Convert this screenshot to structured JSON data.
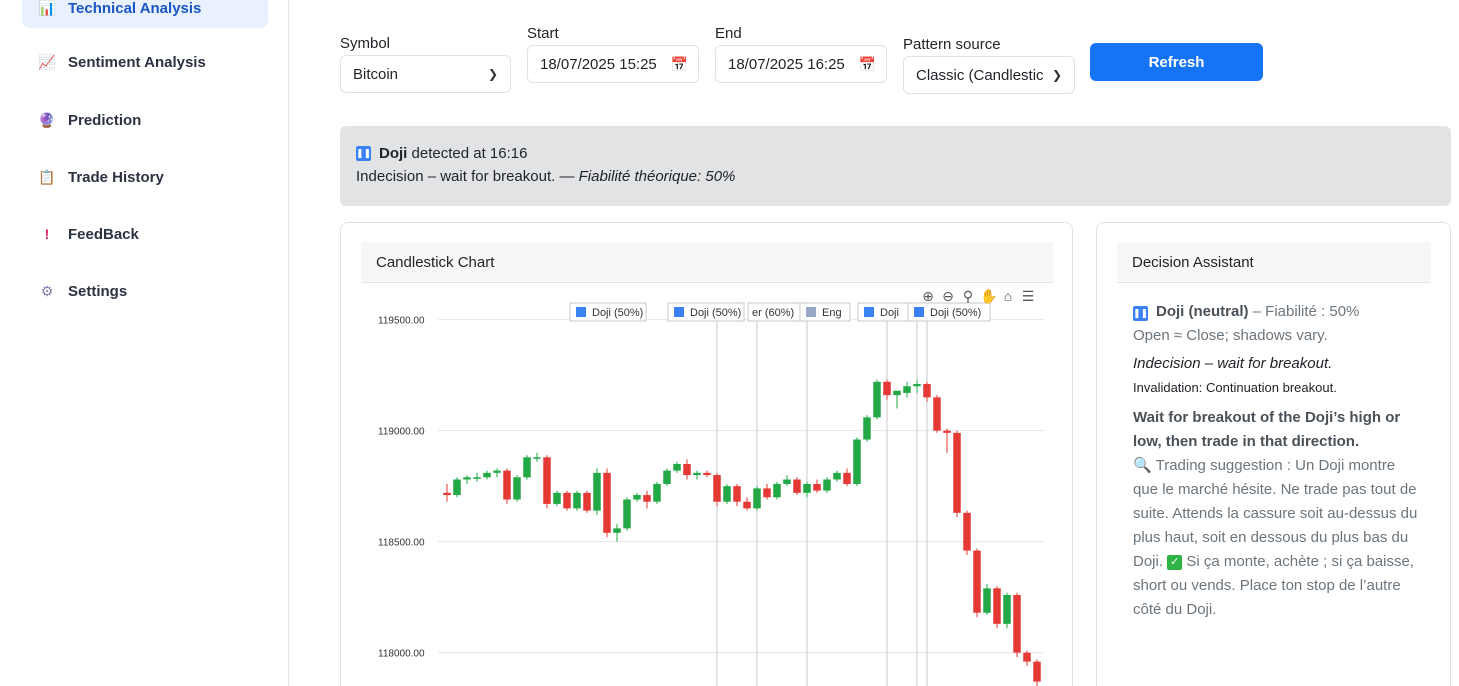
{
  "sidebar": {
    "items": [
      {
        "label": "Technical Analysis",
        "icon": "bar-chart-icon",
        "glyph": "📊",
        "active": true
      },
      {
        "label": "Sentiment Analysis",
        "icon": "line-chart-icon",
        "glyph": "📈"
      },
      {
        "label": "Prediction",
        "icon": "crystal-ball-icon",
        "glyph": "🔮"
      },
      {
        "label": "Trade History",
        "icon": "clipboard-icon",
        "glyph": "📋"
      },
      {
        "label": "FeedBack",
        "icon": "exclamation-icon",
        "glyph": "!"
      },
      {
        "label": "Settings",
        "icon": "gear-icon",
        "glyph": "⚙"
      }
    ]
  },
  "form": {
    "symbol_label": "Symbol",
    "symbol_value": "Bitcoin",
    "start_label": "Start",
    "start_value": "18/07/2025 15:25",
    "end_label": "End",
    "end_value": "18/07/2025 16:25",
    "pattern_label": "Pattern source",
    "pattern_value": "Classic (Candlestic",
    "refresh_label": "Refresh"
  },
  "alert": {
    "pattern": "Doji",
    "detected_text": "detected at 16:16",
    "description": "Indecision – wait for breakout. —",
    "reliability": "Fiabilité théorique: 50%"
  },
  "chart_card": {
    "title": "Candlestick Chart"
  },
  "chart_data": {
    "type": "candlestick",
    "ylim": [
      117850,
      119620
    ],
    "yticks": [
      "119500.00",
      "119000.00",
      "118500.00",
      "118000.00"
    ],
    "ytick_values": [
      119500,
      119000,
      118500,
      118000
    ],
    "annotations": [
      "Doji (50%)",
      "Doji (50%)",
      "er (60%)",
      "Eng",
      "Doji",
      "Doji (50%)"
    ],
    "up_color": "#22a845",
    "down_color": "#e53935",
    "candles": [
      [
        118720,
        118760,
        118680,
        118710
      ],
      [
        118710,
        118790,
        118700,
        118780
      ],
      [
        118780,
        118800,
        118760,
        118790
      ],
      [
        118790,
        118810,
        118770,
        118790
      ],
      [
        118790,
        118820,
        118780,
        118810
      ],
      [
        118810,
        118830,
        118790,
        118820
      ],
      [
        118820,
        118830,
        118670,
        118690
      ],
      [
        118690,
        118800,
        118680,
        118790
      ],
      [
        118790,
        118890,
        118780,
        118880
      ],
      [
        118880,
        118900,
        118860,
        118880
      ],
      [
        118880,
        118890,
        118650,
        118670
      ],
      [
        118670,
        118730,
        118660,
        118720
      ],
      [
        118720,
        118730,
        118640,
        118650
      ],
      [
        118650,
        118730,
        118640,
        118720
      ],
      [
        118720,
        118730,
        118630,
        118640
      ],
      [
        118640,
        118830,
        118620,
        118810
      ],
      [
        118810,
        118830,
        118520,
        118540
      ],
      [
        118540,
        118580,
        118500,
        118560
      ],
      [
        118560,
        118700,
        118550,
        118690
      ],
      [
        118690,
        118720,
        118680,
        118710
      ],
      [
        118710,
        118730,
        118650,
        118680
      ],
      [
        118680,
        118770,
        118670,
        118760
      ],
      [
        118760,
        118830,
        118750,
        118820
      ],
      [
        118820,
        118860,
        118810,
        118850
      ],
      [
        118850,
        118870,
        118780,
        118800
      ],
      [
        118800,
        118820,
        118780,
        118810
      ],
      [
        118810,
        118820,
        118790,
        118800
      ],
      [
        118800,
        118810,
        118660,
        118680
      ],
      [
        118680,
        118760,
        118670,
        118750
      ],
      [
        118750,
        118760,
        118660,
        118680
      ],
      [
        118680,
        118700,
        118640,
        118650
      ],
      [
        118650,
        118750,
        118640,
        118740
      ],
      [
        118740,
        118760,
        118690,
        118700
      ],
      [
        118700,
        118770,
        118690,
        118760
      ],
      [
        118760,
        118800,
        118750,
        118780
      ],
      [
        118780,
        118790,
        118710,
        118720
      ],
      [
        118720,
        118770,
        118700,
        118760
      ],
      [
        118760,
        118780,
        118720,
        118730
      ],
      [
        118730,
        118790,
        118720,
        118780
      ],
      [
        118780,
        118820,
        118770,
        118810
      ],
      [
        118810,
        118830,
        118750,
        118760
      ],
      [
        118760,
        118970,
        118750,
        118960
      ],
      [
        118960,
        119070,
        118950,
        119060
      ],
      [
        119060,
        119230,
        119050,
        119220
      ],
      [
        119220,
        119230,
        119140,
        119160
      ],
      [
        119160,
        119170,
        119100,
        119180
      ],
      [
        119170,
        119220,
        119150,
        119200
      ],
      [
        119200,
        119230,
        119170,
        119210
      ],
      [
        119210,
        119220,
        119130,
        119150
      ],
      [
        119150,
        119160,
        118990,
        119000
      ],
      [
        119000,
        119010,
        118900,
        118990
      ],
      [
        118990,
        119000,
        118610,
        118630
      ],
      [
        118630,
        118640,
        118440,
        118460
      ],
      [
        118460,
        118470,
        118160,
        118180
      ],
      [
        118180,
        118310,
        118170,
        118290
      ],
      [
        118290,
        118300,
        118110,
        118130
      ],
      [
        118130,
        118270,
        118110,
        118260
      ],
      [
        118260,
        118270,
        117980,
        118000
      ],
      [
        118000,
        118010,
        117940,
        117960
      ],
      [
        117960,
        117970,
        117850,
        117870
      ]
    ]
  },
  "decision": {
    "title": "Decision Assistant",
    "pattern_name": "Doji (neutral)",
    "fiability": "– Fiabilité : 50%",
    "shape": "Open ≈ Close; shadows vary.",
    "meaning": "Indecision – wait for breakout.",
    "invalidation": "Invalidation: Continuation breakout.",
    "recommendation": "Wait for breakout of the Doji’s high or low, then trade in that direction.",
    "suggestion_a": "Trading suggestion : Un Doji montre que le marché hésite. Ne trade pas tout de suite. Attends la cassure soit au-dessus du plus haut, soit en dessous du plus bas du Doji.",
    "suggestion_b": "Si ça monte, achète ; si ça baisse, short ou vends. Place ton stop de l’autre côté du Doji."
  }
}
